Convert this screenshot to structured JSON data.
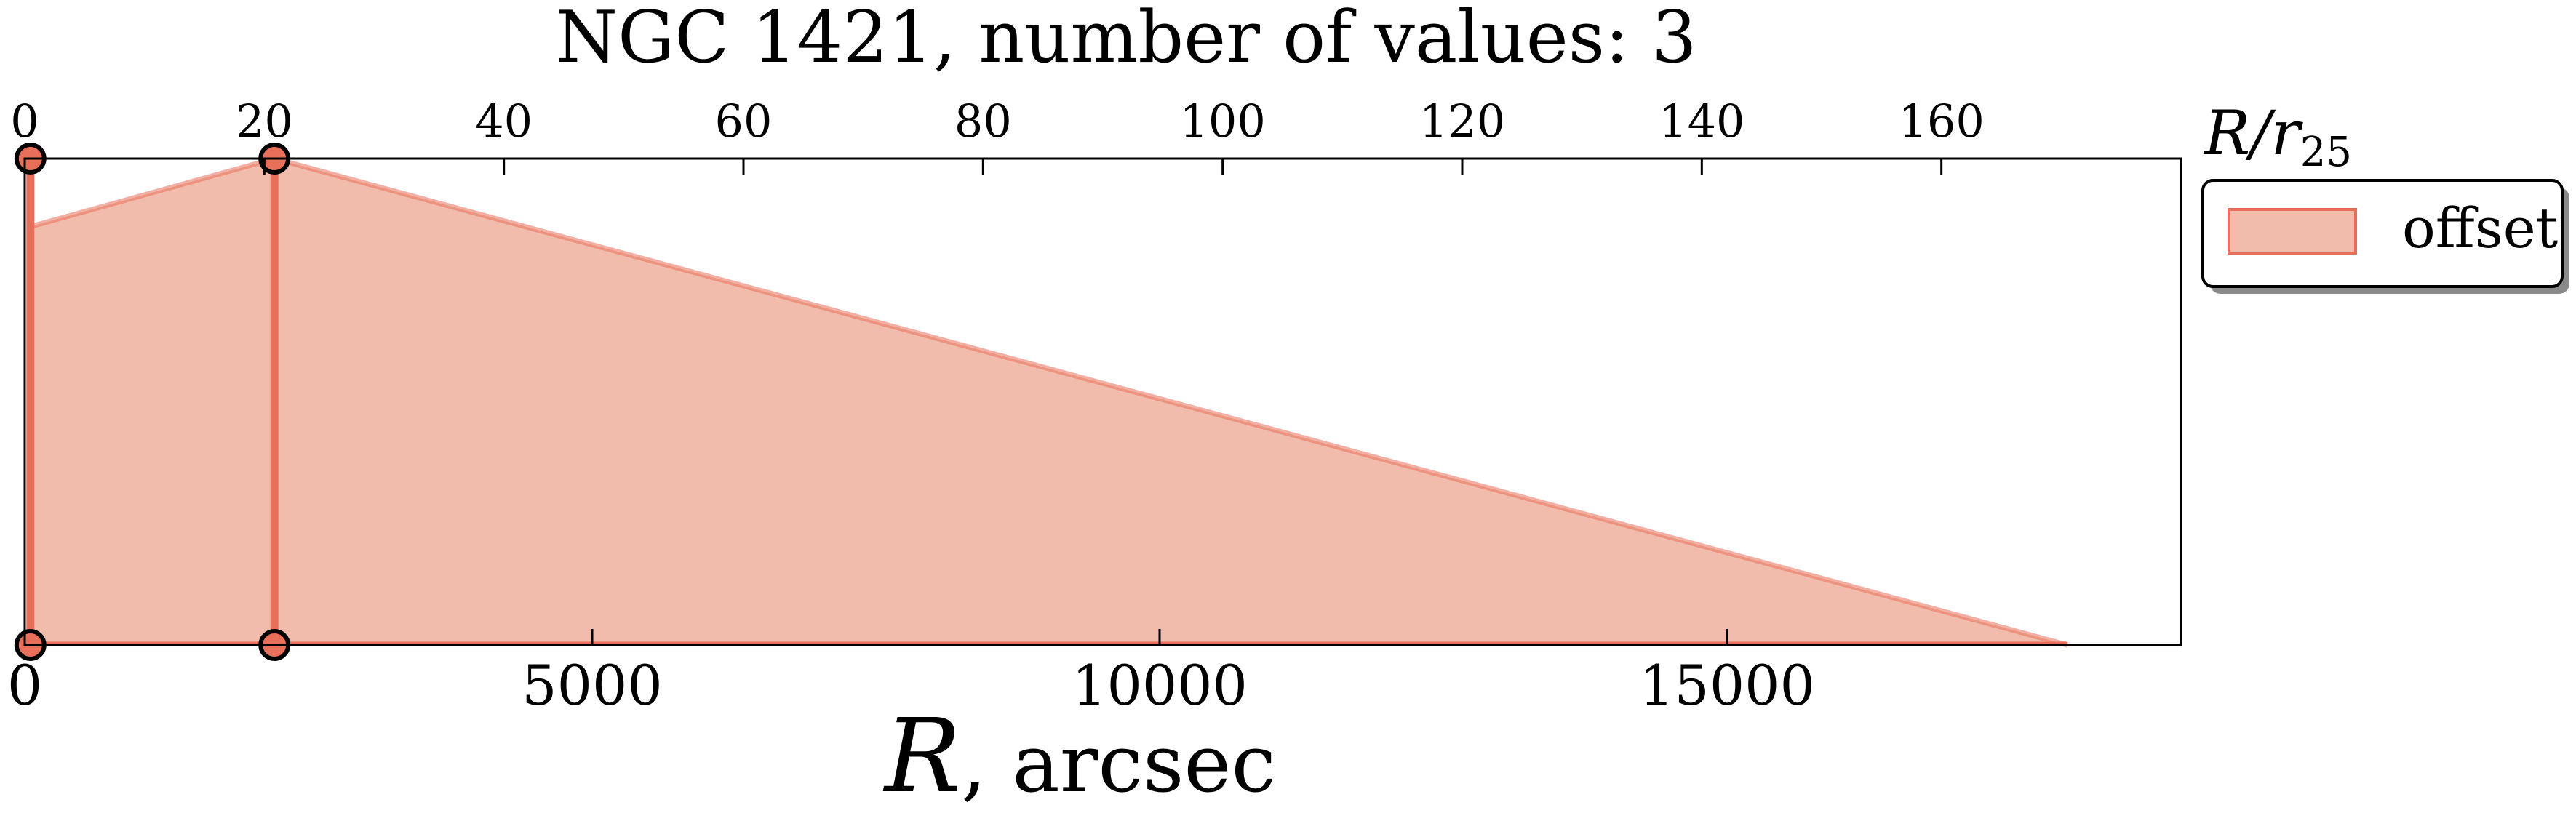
{
  "chart_data": {
    "type": "area",
    "title": "NGC 1421, number of values: 3",
    "xlabel_var": "R",
    "xlabel_rest": ", arcsec",
    "top_axis_label_var": "R/r",
    "top_axis_label_sub": "25",
    "xlim": [
      0,
      19000
    ],
    "x_ticks": [
      0,
      5000,
      10000,
      15000
    ],
    "x_tick_labels": [
      "0",
      "5000",
      "10000",
      "15000"
    ],
    "top_axis_xlim": [
      0,
      180
    ],
    "top_axis_ticks": [
      0,
      20,
      40,
      60,
      80,
      100,
      120,
      140,
      160
    ],
    "top_axis_tick_labels": [
      "0",
      "20",
      "40",
      "60",
      "80",
      "100",
      "120",
      "140",
      "160"
    ],
    "ylim": [
      0,
      1
    ],
    "y_ticks_shown": false,
    "grid": false,
    "legend_position": "top-right, outside the axes",
    "series": [
      {
        "name": "offset",
        "color": "#e8705a",
        "fill_color": "#f1bcac",
        "area_x": [
          50,
          2200,
          18000
        ],
        "area_upper": [
          0.86,
          1.0,
          0.0
        ],
        "area_lower": [
          0,
          0,
          0
        ],
        "points_x": [
          50,
          2200
        ],
        "points_y_top": [
          1,
          1
        ],
        "points_y_bottom": [
          0,
          0
        ]
      }
    ]
  }
}
